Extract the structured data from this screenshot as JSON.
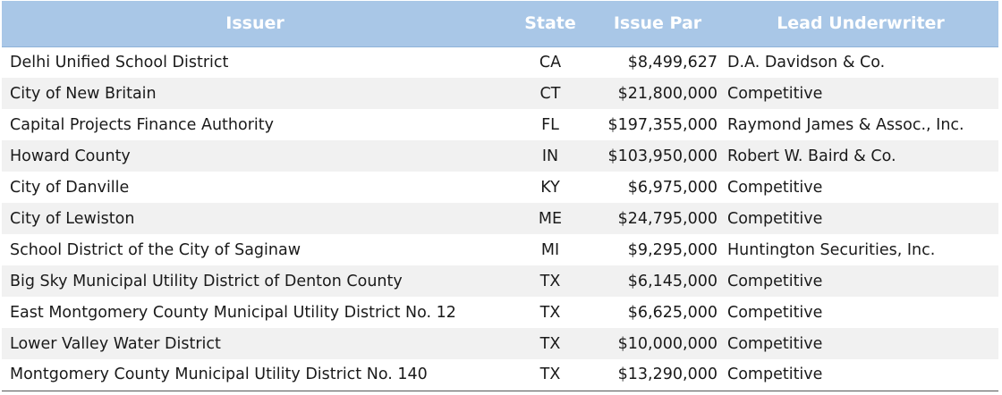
{
  "table": {
    "headers": {
      "issuer": "Issuer",
      "state": "State",
      "issue_par": "Issue Par",
      "lead_underwriter": "Lead Underwriter"
    },
    "rows": [
      {
        "issuer": "Delhi Unified School District",
        "state": "CA",
        "issue_par": "$8,499,627",
        "lead_underwriter": "D.A. Davidson & Co."
      },
      {
        "issuer": "City of New Britain",
        "state": "CT",
        "issue_par": "$21,800,000",
        "lead_underwriter": "Competitive"
      },
      {
        "issuer": "Capital Projects Finance Authority",
        "state": "FL",
        "issue_par": "$197,355,000",
        "lead_underwriter": "Raymond James & Assoc., Inc."
      },
      {
        "issuer": "Howard County",
        "state": "IN",
        "issue_par": "$103,950,000",
        "lead_underwriter": "Robert W. Baird & Co."
      },
      {
        "issuer": "City of Danville",
        "state": "KY",
        "issue_par": "$6,975,000",
        "lead_underwriter": "Competitive"
      },
      {
        "issuer": "City of Lewiston",
        "state": "ME",
        "issue_par": "$24,795,000",
        "lead_underwriter": "Competitive"
      },
      {
        "issuer": "School District of the City of Saginaw",
        "state": "MI",
        "issue_par": "$9,295,000",
        "lead_underwriter": "Huntington Securities, Inc."
      },
      {
        "issuer": "Big Sky Municipal Utility District of Denton County",
        "state": "TX",
        "issue_par": "$6,145,000",
        "lead_underwriter": "Competitive"
      },
      {
        "issuer": "East Montgomery County Municipal Utility District No. 12",
        "state": "TX",
        "issue_par": "$6,625,000",
        "lead_underwriter": "Competitive"
      },
      {
        "issuer": "Lower Valley Water District",
        "state": "TX",
        "issue_par": "$10,000,000",
        "lead_underwriter": "Competitive"
      },
      {
        "issuer": "Montgomery County Municipal Utility District No. 140",
        "state": "TX",
        "issue_par": "$13,290,000",
        "lead_underwriter": "Competitive"
      }
    ]
  },
  "colors": {
    "header_background": "#a9c7e7",
    "header_text": "#ffffff",
    "stripe_background": "#f1f1f1"
  }
}
